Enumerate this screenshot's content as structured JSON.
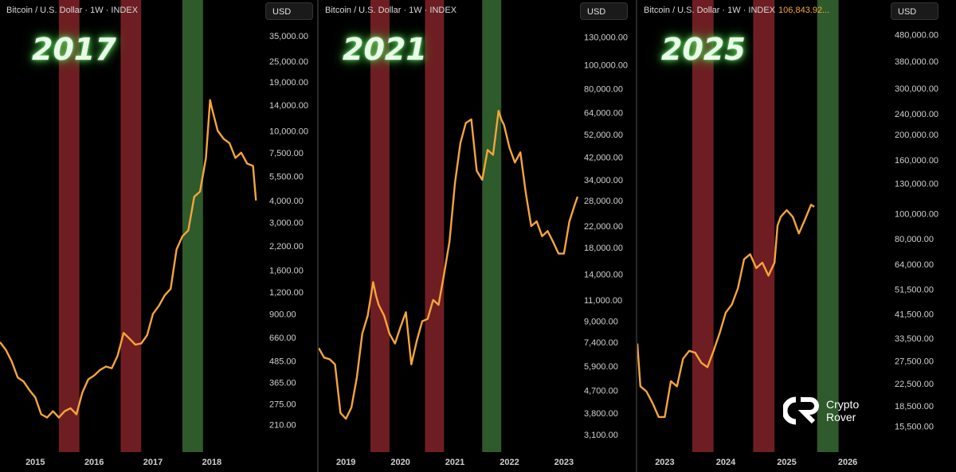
{
  "panels": [
    {
      "title": "2017",
      "header": "Bitcoin / U.S. Dollar · 1W · INDEX",
      "header_price": "",
      "currency": "USD"
    },
    {
      "title": "2021",
      "header": "Bitcoin / U.S. Dollar · 1W · INDEX",
      "header_price": "",
      "currency": "USD"
    },
    {
      "title": "2025",
      "header": "Bitcoin / U.S. Dollar · 1W · INDEX",
      "header_price": "106,843.92...",
      "currency": "USD"
    }
  ],
  "logo": {
    "line1": "Crypto",
    "line2": "Rover"
  },
  "colors": {
    "line": "#f5a53a",
    "red_band": "#6e1e22",
    "green_band": "#2f5a2c",
    "background": "#000000",
    "title_glow": "#5dd45d"
  },
  "chart_data": [
    {
      "type": "line",
      "title": "2017",
      "y_scale": "log",
      "ylim": [
        180,
        40000
      ],
      "x_ticks": [
        2015,
        2016,
        2017,
        2018
      ],
      "xlim": [
        2014.4,
        2018.8
      ],
      "y_ticks": [
        "35,000.00",
        "25,000.00",
        "19,000.00",
        "14,000.00",
        "10,000.00",
        "7,500.00",
        "5,500.00",
        "4,000.00",
        "3,000.00",
        "2,200.00",
        "1,600.00",
        "1,200.00",
        "900.00",
        "660.00",
        "485.00",
        "365.00",
        "275.00",
        "210.00"
      ],
      "y_tick_values": [
        35000,
        25000,
        19000,
        14000,
        10000,
        7500,
        5500,
        4000,
        3000,
        2200,
        1600,
        1200,
        900,
        660,
        485,
        365,
        275,
        210
      ],
      "bands": [
        {
          "color": "red",
          "from": 2015.4,
          "to": 2015.75
        },
        {
          "color": "red",
          "from": 2016.45,
          "to": 2016.8
        },
        {
          "color": "green",
          "from": 2017.5,
          "to": 2017.85
        }
      ],
      "series": [
        {
          "x": [
            2014.4,
            2014.5,
            2014.6,
            2014.7,
            2014.8,
            2014.9,
            2015.0,
            2015.1,
            2015.2,
            2015.3,
            2015.4,
            2015.5,
            2015.6,
            2015.7,
            2015.8,
            2015.9,
            2016.0,
            2016.1,
            2016.2,
            2016.3,
            2016.4,
            2016.5,
            2016.6,
            2016.7,
            2016.8,
            2016.9,
            2017.0,
            2017.1,
            2017.2,
            2017.3,
            2017.4,
            2017.5,
            2017.6,
            2017.7,
            2017.8,
            2017.9,
            2017.97,
            2018.0,
            2018.1,
            2018.2,
            2018.3,
            2018.4,
            2018.5,
            2018.6,
            2018.7,
            2018.75
          ],
          "y": [
            620,
            560,
            480,
            390,
            370,
            330,
            300,
            240,
            230,
            250,
            230,
            250,
            260,
            240,
            320,
            380,
            400,
            430,
            450,
            440,
            520,
            700,
            650,
            600,
            610,
            680,
            900,
            1000,
            1150,
            1250,
            2100,
            2500,
            2700,
            4200,
            4500,
            7000,
            15000,
            13500,
            10000,
            9000,
            8500,
            7000,
            7500,
            6500,
            6300,
            4000
          ]
        }
      ]
    },
    {
      "type": "line",
      "title": "2021",
      "y_scale": "log",
      "ylim": [
        2900,
        145000
      ],
      "x_ticks": [
        2019,
        2020,
        2021,
        2022,
        2023
      ],
      "xlim": [
        2018.5,
        2023.25
      ],
      "y_ticks": [
        "130,000.00",
        "100,000.00",
        "80,000.00",
        "64,000.00",
        "52,000.00",
        "42,000.00",
        "34,000.00",
        "28,000.00",
        "22,000.00",
        "18,000.00",
        "14,000.00",
        "11,000.00",
        "9,000.00",
        "7,400.00",
        "5,900.00",
        "4,700.00",
        "3,800.00",
        "3,100.00"
      ],
      "y_tick_values": [
        130000,
        100000,
        80000,
        64000,
        52000,
        42000,
        34000,
        28000,
        22000,
        18000,
        14000,
        11000,
        9000,
        7400,
        5900,
        4700,
        3800,
        3100
      ],
      "bands": [
        {
          "color": "red",
          "from": 2019.45,
          "to": 2019.8
        },
        {
          "color": "red",
          "from": 2020.45,
          "to": 2020.8
        },
        {
          "color": "green",
          "from": 2021.5,
          "to": 2021.85
        }
      ],
      "series": [
        {
          "x": [
            2018.5,
            2018.6,
            2018.7,
            2018.8,
            2018.9,
            2019.0,
            2019.1,
            2019.2,
            2019.3,
            2019.4,
            2019.5,
            2019.55,
            2019.6,
            2019.7,
            2019.8,
            2019.9,
            2020.0,
            2020.1,
            2020.2,
            2020.3,
            2020.4,
            2020.5,
            2020.6,
            2020.7,
            2020.8,
            2020.9,
            2021.0,
            2021.1,
            2021.2,
            2021.3,
            2021.4,
            2021.5,
            2021.6,
            2021.7,
            2021.8,
            2021.85,
            2021.9,
            2022.0,
            2022.1,
            2022.2,
            2022.3,
            2022.4,
            2022.5,
            2022.6,
            2022.7,
            2022.8,
            2022.9,
            2023.0,
            2023.1,
            2023.2,
            2023.25
          ],
          "y": [
            7000,
            6400,
            6300,
            6000,
            3800,
            3600,
            4000,
            5300,
            8000,
            9500,
            13000,
            11500,
            10500,
            9500,
            8000,
            7300,
            8500,
            9800,
            6000,
            7500,
            9000,
            9200,
            11000,
            10500,
            14000,
            19000,
            33000,
            48000,
            58000,
            60000,
            37000,
            34000,
            45000,
            43000,
            65000,
            60000,
            57000,
            46000,
            40000,
            44000,
            30000,
            22000,
            23000,
            20000,
            21000,
            19000,
            17000,
            17000,
            23000,
            27000,
            29000
          ]
        }
      ]
    },
    {
      "type": "line",
      "title": "2025",
      "y_scale": "log",
      "ylim": [
        14500,
        520000
      ],
      "x_ticks": [
        2023,
        2024,
        2025,
        2026
      ],
      "xlim": [
        2022.55,
        2026.6
      ],
      "y_ticks": [
        "480,000.00",
        "380,000.00",
        "300,000.00",
        "240,000.00",
        "200,000.00",
        "160,000.00",
        "130,000.00",
        "100,000.00",
        "80,000.00",
        "64,000.00",
        "51,500.00",
        "41,500.00",
        "33,500.00",
        "27,500.00",
        "22,500.00",
        "18,500.00",
        "15,500.00"
      ],
      "y_tick_values": [
        480000,
        380000,
        300000,
        240000,
        200000,
        160000,
        130000,
        100000,
        80000,
        64000,
        51500,
        41500,
        33500,
        27500,
        22500,
        18500,
        15500
      ],
      "bands": [
        {
          "color": "red",
          "from": 2023.45,
          "to": 2023.8
        },
        {
          "color": "red",
          "from": 2024.45,
          "to": 2024.8
        },
        {
          "color": "green",
          "from": 2025.5,
          "to": 2025.85
        }
      ],
      "series": [
        {
          "x": [
            2022.55,
            2022.6,
            2022.7,
            2022.8,
            2022.9,
            2023.0,
            2023.1,
            2023.2,
            2023.3,
            2023.4,
            2023.5,
            2023.6,
            2023.7,
            2023.8,
            2023.9,
            2024.0,
            2024.1,
            2024.2,
            2024.3,
            2024.4,
            2024.5,
            2024.6,
            2024.7,
            2024.8,
            2024.85,
            2024.9,
            2025.0,
            2025.1,
            2025.2,
            2025.3,
            2025.4,
            2025.45
          ],
          "y": [
            32000,
            22000,
            21000,
            19000,
            16800,
            16800,
            23000,
            22000,
            28000,
            30000,
            29500,
            27000,
            26000,
            30000,
            35000,
            42000,
            45000,
            52000,
            67000,
            70000,
            62000,
            65000,
            58000,
            65000,
            90000,
            97000,
            103000,
            97000,
            84000,
            95000,
            108000,
            106000
          ]
        }
      ]
    }
  ]
}
